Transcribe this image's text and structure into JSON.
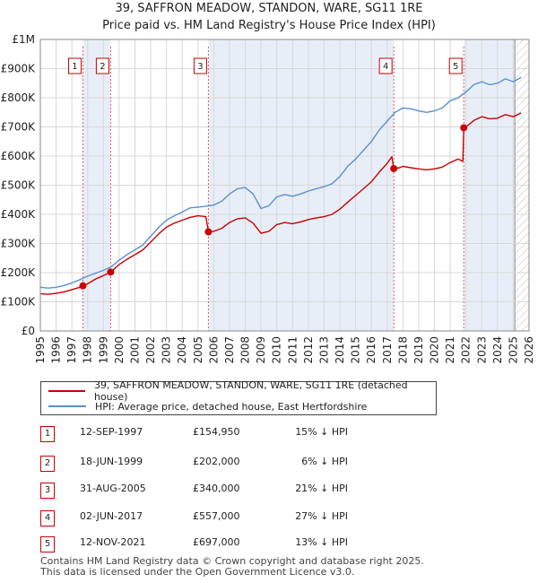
{
  "header": {
    "title": "39, SAFFRON MEADOW, STANDON, WARE, SG11 1RE",
    "subtitle": "Price paid vs. HM Land Registry's House Price Index (HPI)"
  },
  "legend": {
    "property_label": "39, SAFFRON MEADOW, STANDON, WARE, SG11 1RE (detached house)",
    "hpi_label": "HPI: Average price, detached house, East Hertfordshire"
  },
  "colors": {
    "property": "#cc0000",
    "hpi": "#5b8fd0",
    "shade": "#e8eef8",
    "marker_line": "#e06060",
    "future_hatch": "#999999",
    "grid": "#d8d8d8"
  },
  "sales": [
    {
      "num": "1",
      "date": "12-SEP-1997",
      "price": "£154,950",
      "hpi": "15% ↓ HPI"
    },
    {
      "num": "2",
      "date": "18-JUN-1999",
      "price": "£202,000",
      "hpi": "6% ↓ HPI"
    },
    {
      "num": "3",
      "date": "31-AUG-2005",
      "price": "£340,000",
      "hpi": "21% ↓ HPI"
    },
    {
      "num": "4",
      "date": "02-JUN-2017",
      "price": "£557,000",
      "hpi": "27% ↓ HPI"
    },
    {
      "num": "5",
      "date": "12-NOV-2021",
      "price": "£697,000",
      "hpi": "13% ↓ HPI"
    }
  ],
  "footer": {
    "line1": "Contains HM Land Registry data © Crown copyright and database right 2025.",
    "line2": "This data is licensed under the Open Government Licence v3.0."
  },
  "chart_data": {
    "type": "line",
    "xlim": [
      1995,
      2026
    ],
    "ylim": [
      0,
      1000000
    ],
    "y_ticks": [
      {
        "value": 0,
        "label": "£0"
      },
      {
        "value": 100000,
        "label": "£100K"
      },
      {
        "value": 200000,
        "label": "£200K"
      },
      {
        "value": 300000,
        "label": "£300K"
      },
      {
        "value": 400000,
        "label": "£400K"
      },
      {
        "value": 500000,
        "label": "£500K"
      },
      {
        "value": 600000,
        "label": "£600K"
      },
      {
        "value": 700000,
        "label": "£700K"
      },
      {
        "value": 800000,
        "label": "£800K"
      },
      {
        "value": 900000,
        "label": "£900K"
      },
      {
        "value": 1000000,
        "label": "£1M"
      }
    ],
    "x_ticks": [
      "1995",
      "1996",
      "1997",
      "1998",
      "1999",
      "2000",
      "2001",
      "2002",
      "2003",
      "2004",
      "2005",
      "2006",
      "2007",
      "2008",
      "2009",
      "2010",
      "2011",
      "2012",
      "2013",
      "2014",
      "2015",
      "2016",
      "2017",
      "2018",
      "2019",
      "2020",
      "2021",
      "2022",
      "2023",
      "2024",
      "2025",
      "2026"
    ],
    "future_start": 2025.1,
    "sale_markers": [
      {
        "num": "1",
        "x": 1997.7,
        "value": 154950
      },
      {
        "num": "2",
        "x": 1999.46,
        "value": 202000
      },
      {
        "num": "3",
        "x": 2005.66,
        "value": 340000
      },
      {
        "num": "4",
        "x": 2017.42,
        "value": 557000
      },
      {
        "num": "5",
        "x": 2021.86,
        "value": 697000
      }
    ],
    "series": [
      {
        "name": "HPI: Average price, detached house, East Hertfordshire",
        "points": [
          [
            1995.0,
            150000
          ],
          [
            1995.5,
            147000
          ],
          [
            1996.0,
            150000
          ],
          [
            1996.5,
            156000
          ],
          [
            1997.0,
            165000
          ],
          [
            1997.5,
            176000
          ],
          [
            1998.0,
            188000
          ],
          [
            1998.5,
            198000
          ],
          [
            1999.0,
            208000
          ],
          [
            1999.5,
            220000
          ],
          [
            2000.0,
            243000
          ],
          [
            2000.5,
            262000
          ],
          [
            2001.0,
            278000
          ],
          [
            2001.5,
            295000
          ],
          [
            2002.0,
            325000
          ],
          [
            2002.5,
            355000
          ],
          [
            2003.0,
            380000
          ],
          [
            2003.5,
            395000
          ],
          [
            2004.0,
            408000
          ],
          [
            2004.5,
            422000
          ],
          [
            2005.0,
            425000
          ],
          [
            2005.5,
            428000
          ],
          [
            2006.0,
            432000
          ],
          [
            2006.5,
            445000
          ],
          [
            2007.0,
            470000
          ],
          [
            2007.5,
            488000
          ],
          [
            2008.0,
            492000
          ],
          [
            2008.5,
            470000
          ],
          [
            2009.0,
            420000
          ],
          [
            2009.5,
            430000
          ],
          [
            2010.0,
            460000
          ],
          [
            2010.5,
            468000
          ],
          [
            2011.0,
            462000
          ],
          [
            2011.5,
            470000
          ],
          [
            2012.0,
            480000
          ],
          [
            2012.5,
            488000
          ],
          [
            2013.0,
            495000
          ],
          [
            2013.5,
            505000
          ],
          [
            2014.0,
            530000
          ],
          [
            2014.5,
            565000
          ],
          [
            2015.0,
            590000
          ],
          [
            2015.5,
            620000
          ],
          [
            2016.0,
            650000
          ],
          [
            2016.5,
            690000
          ],
          [
            2017.0,
            720000
          ],
          [
            2017.5,
            750000
          ],
          [
            2018.0,
            765000
          ],
          [
            2018.5,
            762000
          ],
          [
            2019.0,
            755000
          ],
          [
            2019.5,
            750000
          ],
          [
            2020.0,
            755000
          ],
          [
            2020.5,
            765000
          ],
          [
            2021.0,
            790000
          ],
          [
            2021.5,
            800000
          ],
          [
            2022.0,
            820000
          ],
          [
            2022.5,
            845000
          ],
          [
            2023.0,
            855000
          ],
          [
            2023.5,
            845000
          ],
          [
            2024.0,
            850000
          ],
          [
            2024.5,
            865000
          ],
          [
            2025.0,
            855000
          ],
          [
            2025.5,
            870000
          ]
        ]
      },
      {
        "name": "39, SAFFRON MEADOW, STANDON, WARE, SG11 1RE (detached house)",
        "points": [
          [
            1995.0,
            128000
          ],
          [
            1995.5,
            126000
          ],
          [
            1996.0,
            129000
          ],
          [
            1996.5,
            134000
          ],
          [
            1997.0,
            142000
          ],
          [
            1997.5,
            150000
          ],
          [
            1997.7,
            154950
          ],
          [
            1998.0,
            162000
          ],
          [
            1998.5,
            178000
          ],
          [
            1999.0,
            190000
          ],
          [
            1999.46,
            202000
          ],
          [
            2000.0,
            228000
          ],
          [
            2000.5,
            246000
          ],
          [
            2001.0,
            262000
          ],
          [
            2001.5,
            278000
          ],
          [
            2002.0,
            305000
          ],
          [
            2002.5,
            333000
          ],
          [
            2003.0,
            356000
          ],
          [
            2003.5,
            370000
          ],
          [
            2004.0,
            380000
          ],
          [
            2004.5,
            390000
          ],
          [
            2005.0,
            395000
          ],
          [
            2005.5,
            392000
          ],
          [
            2005.66,
            340000
          ],
          [
            2006.0,
            342000
          ],
          [
            2006.5,
            352000
          ],
          [
            2007.0,
            372000
          ],
          [
            2007.5,
            385000
          ],
          [
            2008.0,
            388000
          ],
          [
            2008.5,
            370000
          ],
          [
            2009.0,
            335000
          ],
          [
            2009.5,
            342000
          ],
          [
            2010.0,
            365000
          ],
          [
            2010.5,
            372000
          ],
          [
            2011.0,
            368000
          ],
          [
            2011.5,
            374000
          ],
          [
            2012.0,
            382000
          ],
          [
            2012.5,
            388000
          ],
          [
            2013.0,
            392000
          ],
          [
            2013.5,
            400000
          ],
          [
            2014.0,
            418000
          ],
          [
            2014.5,
            442000
          ],
          [
            2015.0,
            465000
          ],
          [
            2015.5,
            488000
          ],
          [
            2016.0,
            512000
          ],
          [
            2016.5,
            545000
          ],
          [
            2017.0,
            575000
          ],
          [
            2017.3,
            598000
          ],
          [
            2017.42,
            557000
          ],
          [
            2017.8,
            560000
          ],
          [
            2018.0,
            565000
          ],
          [
            2018.5,
            560000
          ],
          [
            2019.0,
            556000
          ],
          [
            2019.5,
            553000
          ],
          [
            2020.0,
            556000
          ],
          [
            2020.5,
            562000
          ],
          [
            2021.0,
            578000
          ],
          [
            2021.5,
            590000
          ],
          [
            2021.8,
            582000
          ],
          [
            2021.86,
            697000
          ],
          [
            2022.0,
            700000
          ],
          [
            2022.5,
            722000
          ],
          [
            2023.0,
            735000
          ],
          [
            2023.5,
            728000
          ],
          [
            2024.0,
            730000
          ],
          [
            2024.5,
            742000
          ],
          [
            2025.0,
            735000
          ],
          [
            2025.5,
            748000
          ]
        ]
      }
    ]
  }
}
